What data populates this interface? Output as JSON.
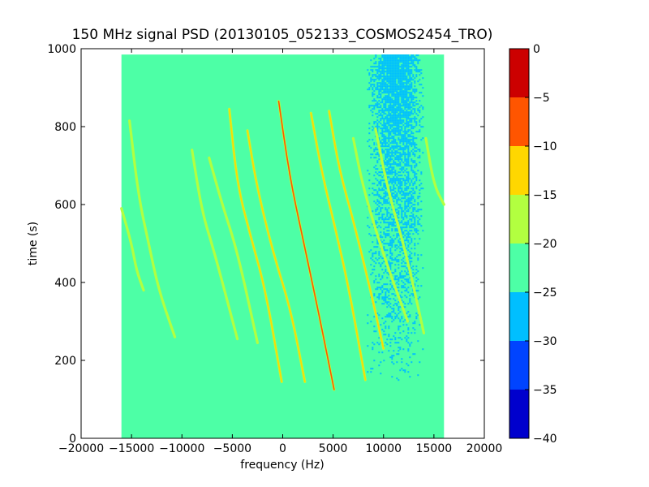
{
  "chart_data": {
    "type": "heatmap",
    "title": "150 MHz signal PSD (20130105_052133_COSMOS2454_TRO)",
    "xlabel": "frequency (Hz)",
    "ylabel": "time (s)",
    "xlim": [
      -20000,
      20000
    ],
    "ylim": [
      0,
      1000
    ],
    "xticks": [
      -20000,
      -15000,
      -10000,
      -5000,
      0,
      5000,
      10000,
      15000,
      20000
    ],
    "yticks": [
      0,
      200,
      400,
      600,
      800,
      1000
    ],
    "data_extent": {
      "x": [
        -16000,
        16000
      ],
      "y": [
        0,
        985
      ]
    },
    "background_level": -22.5,
    "noise_region": {
      "x": [
        9000,
        14000
      ],
      "y": [
        500,
        985
      ],
      "level": -27.5
    },
    "colorbar": {
      "levels": [
        -40,
        -35,
        -30,
        -25,
        -20,
        -15,
        -10,
        -5,
        0
      ],
      "tick_labels": [
        "-40",
        "-35",
        "-30",
        "-25",
        "-20",
        "-15",
        "-10",
        "-5",
        "0"
      ],
      "colors": [
        "#0000cd",
        "#0044ff",
        "#00bfff",
        "#4dffa6",
        "#b2ff40",
        "#ffd700",
        "#ff5500",
        "#cc0000"
      ]
    },
    "series": [
      {
        "level": -17.5,
        "points": [
          [
            -16000,
            590
          ],
          [
            -15000,
            500
          ],
          [
            -14500,
            430
          ],
          [
            -13800,
            380
          ]
        ]
      },
      {
        "level": -17.5,
        "points": [
          [
            -15200,
            815
          ],
          [
            -14300,
            620
          ],
          [
            -13300,
            500
          ],
          [
            -12300,
            380
          ],
          [
            -10700,
            260
          ]
        ]
      },
      {
        "level": -17.5,
        "points": [
          [
            -9000,
            740
          ],
          [
            -8000,
            580
          ],
          [
            -6800,
            480
          ],
          [
            -4500,
            255
          ]
        ]
      },
      {
        "level": -17.5,
        "points": [
          [
            -7300,
            720
          ],
          [
            -6000,
            600
          ],
          [
            -4500,
            480
          ],
          [
            -2500,
            245
          ]
        ]
      },
      {
        "level": -12.5,
        "points": [
          [
            -5300,
            845
          ],
          [
            -4500,
            650
          ],
          [
            -3200,
            520
          ],
          [
            -1700,
            380
          ],
          [
            -100,
            145
          ]
        ]
      },
      {
        "level": -12.5,
        "points": [
          [
            -3500,
            790
          ],
          [
            -2600,
            650
          ],
          [
            -1000,
            480
          ],
          [
            800,
            330
          ],
          [
            2200,
            145
          ]
        ]
      },
      {
        "level": -7.5,
        "points": [
          [
            -400,
            865
          ],
          [
            700,
            670
          ],
          [
            2100,
            500
          ],
          [
            3500,
            330
          ],
          [
            5100,
            125
          ]
        ]
      },
      {
        "level": -12.5,
        "points": [
          [
            2800,
            835
          ],
          [
            3900,
            680
          ],
          [
            5300,
            530
          ],
          [
            6600,
            380
          ],
          [
            8200,
            150
          ]
        ]
      },
      {
        "level": -12.5,
        "points": [
          [
            4600,
            840
          ],
          [
            5600,
            690
          ],
          [
            7100,
            550
          ],
          [
            8800,
            370
          ],
          [
            10000,
            230
          ]
        ]
      },
      {
        "level": -17.5,
        "points": [
          [
            7000,
            770
          ],
          [
            8000,
            640
          ],
          [
            10000,
            470
          ],
          [
            12400,
            300
          ]
        ]
      },
      {
        "level": -17.5,
        "points": [
          [
            9200,
            795
          ],
          [
            10500,
            630
          ],
          [
            12200,
            480
          ],
          [
            14000,
            270
          ]
        ]
      },
      {
        "level": -17.5,
        "points": [
          [
            14200,
            770
          ],
          [
            15000,
            650
          ],
          [
            16000,
            600
          ]
        ]
      }
    ]
  }
}
